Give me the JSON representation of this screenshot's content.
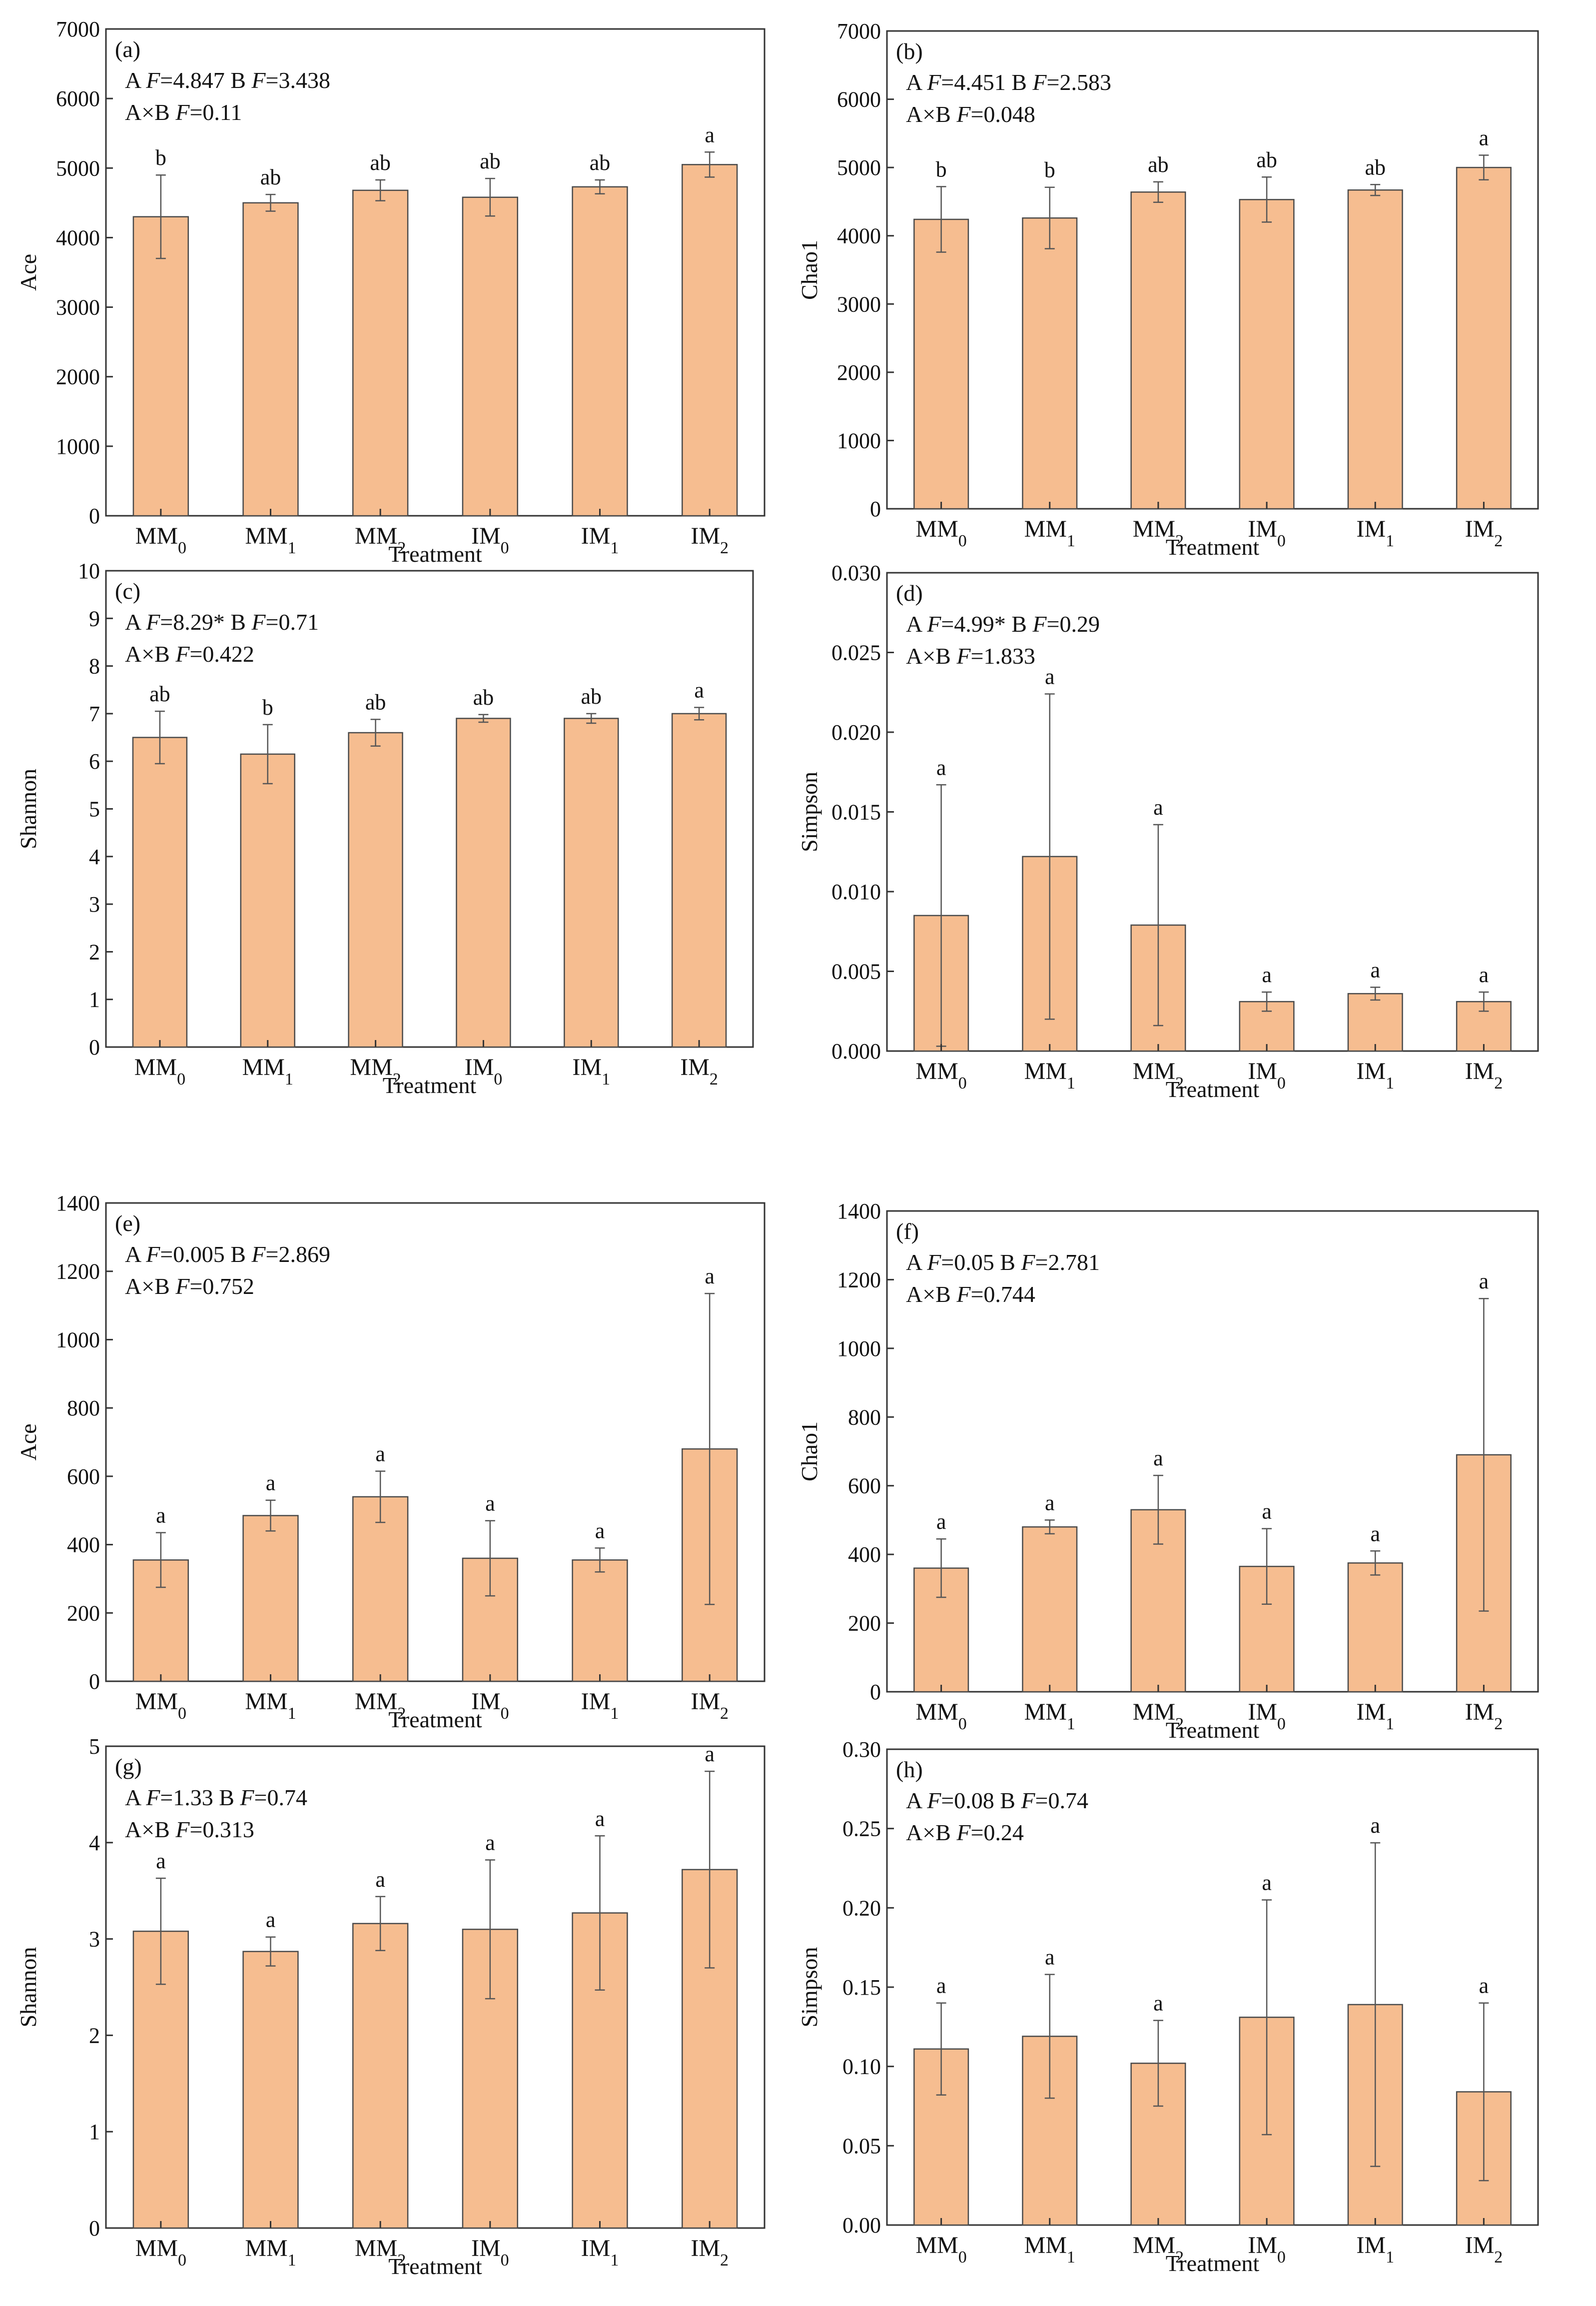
{
  "figure": {
    "bar_fill": "#F6BD90",
    "bar_stroke": "#4a4a4a",
    "error_color": "#555555",
    "axis_color": "#333333"
  },
  "chart_data": [
    {
      "id": "a",
      "type": "bar",
      "panel_label": "(a)",
      "stats": [
        "A F=4.847  B F=3.438",
        "A×B  F=0.11"
      ],
      "ylabel": "Ace",
      "xlabel": "Treatment",
      "ylim": [
        0,
        7000
      ],
      "yticks": [
        0,
        1000,
        2000,
        3000,
        4000,
        5000,
        6000,
        7000
      ],
      "ytick_labels": [
        "0",
        "1000",
        "2000",
        "3000",
        "4000",
        "5000",
        "6000",
        "7000"
      ],
      "categories": [
        "MM0",
        "MM1",
        "MM2",
        "IM0",
        "IM1",
        "IM2"
      ],
      "values": [
        4300,
        4500,
        4680,
        4580,
        4730,
        5050
      ],
      "errors": [
        600,
        120,
        150,
        270,
        100,
        180
      ],
      "letters": [
        "b",
        "ab",
        "ab",
        "ab",
        "ab",
        "a"
      ]
    },
    {
      "id": "b",
      "type": "bar",
      "panel_label": "(b)",
      "stats": [
        "A F=4.451  B F=2.583",
        "A×B  F=0.048"
      ],
      "ylabel": "Chao1",
      "xlabel": "Treatment",
      "ylim": [
        0,
        7000
      ],
      "yticks": [
        0,
        1000,
        2000,
        3000,
        4000,
        5000,
        6000,
        7000
      ],
      "ytick_labels": [
        "0",
        "1000",
        "2000",
        "3000",
        "4000",
        "5000",
        "6000",
        "7000"
      ],
      "categories": [
        "MM0",
        "MM1",
        "MM2",
        "IM0",
        "IM1",
        "IM2"
      ],
      "values": [
        4240,
        4260,
        4640,
        4530,
        4670,
        5000
      ],
      "errors": [
        480,
        450,
        150,
        330,
        80,
        180
      ],
      "letters": [
        "b",
        "b",
        "ab",
        "ab",
        "ab",
        "a"
      ]
    },
    {
      "id": "c",
      "type": "bar",
      "panel_label": "(c)",
      "stats": [
        "A  F=8.29*  B  F=0.71",
        "A×B  F=0.422"
      ],
      "ylabel": "Shannon",
      "xlabel": "Treatment",
      "ylim": [
        0,
        10
      ],
      "yticks": [
        0,
        1,
        2,
        3,
        4,
        5,
        6,
        7,
        8,
        9,
        10
      ],
      "ytick_labels": [
        "0",
        "1",
        "2",
        "3",
        "4",
        "5",
        "6",
        "7",
        "8",
        "9",
        "10"
      ],
      "categories": [
        "MM0",
        "MM1",
        "MM2",
        "IM0",
        "IM1",
        "IM2"
      ],
      "values": [
        6.5,
        6.15,
        6.6,
        6.9,
        6.9,
        7.0
      ],
      "errors": [
        0.55,
        0.62,
        0.28,
        0.08,
        0.1,
        0.13
      ],
      "letters": [
        "ab",
        "b",
        "ab",
        "ab",
        "ab",
        "a"
      ]
    },
    {
      "id": "d",
      "type": "bar",
      "panel_label": "(d)",
      "stats": [
        "A  F=4.99*  B  F=0.29",
        "A×B  F=1.833"
      ],
      "ylabel": "Simpson",
      "xlabel": "Treatment",
      "ylim": [
        0,
        0.03
      ],
      "yticks": [
        0,
        0.005,
        0.01,
        0.015,
        0.02,
        0.025,
        0.03
      ],
      "ytick_labels": [
        "0.000",
        "0.005",
        "0.010",
        "0.015",
        "0.020",
        "0.025",
        "0.030"
      ],
      "categories": [
        "MM0",
        "MM1",
        "MM2",
        "IM0",
        "IM1",
        "IM2"
      ],
      "values": [
        0.0085,
        0.0122,
        0.0079,
        0.0031,
        0.0036,
        0.0031
      ],
      "errors": [
        0.0082,
        0.0102,
        0.0063,
        0.0006,
        0.0004,
        0.0006
      ],
      "letters": [
        "a",
        "a",
        "a",
        "a",
        "a",
        "a"
      ]
    },
    {
      "id": "e",
      "type": "bar",
      "panel_label": "(e)",
      "stats": [
        "A  F=0.005    B  F=2.869",
        "A×B  F=0.752"
      ],
      "ylabel": "Ace",
      "xlabel": "Treatment",
      "ylim": [
        0,
        1400
      ],
      "yticks": [
        0,
        200,
        400,
        600,
        800,
        1000,
        1200,
        1400
      ],
      "ytick_labels": [
        "0",
        "200",
        "400",
        "600",
        "800",
        "1000",
        "1200",
        "1400"
      ],
      "categories": [
        "MM0",
        "MM1",
        "MM2",
        "IM0",
        "IM1",
        "IM2"
      ],
      "values": [
        355,
        485,
        540,
        360,
        355,
        680
      ],
      "errors": [
        80,
        45,
        75,
        110,
        35,
        455
      ],
      "letters": [
        "a",
        "a",
        "a",
        "a",
        "a",
        "a"
      ]
    },
    {
      "id": "f",
      "type": "bar",
      "panel_label": "(f)",
      "stats": [
        "A F=0.05   B F=2.781",
        "A×B  F=0.744"
      ],
      "ylabel": "Chao1",
      "xlabel": "Treatment",
      "ylim": [
        0,
        1400
      ],
      "yticks": [
        0,
        200,
        400,
        600,
        800,
        1000,
        1200,
        1400
      ],
      "ytick_labels": [
        "0",
        "200",
        "400",
        "600",
        "800",
        "1000",
        "1200",
        "1400"
      ],
      "categories": [
        "MM0",
        "MM1",
        "MM2",
        "IM0",
        "IM1",
        "IM2"
      ],
      "values": [
        360,
        480,
        530,
        365,
        375,
        690
      ],
      "errors": [
        85,
        20,
        100,
        110,
        35,
        455
      ],
      "letters": [
        "a",
        "a",
        "a",
        "a",
        "a",
        "a"
      ]
    },
    {
      "id": "g",
      "type": "bar",
      "panel_label": "(g)",
      "stats": [
        "A  F=1.33   B  F=0.74",
        "A×B  F=0.313"
      ],
      "ylabel": "Shannon",
      "xlabel": "Treatment",
      "ylim": [
        0,
        5
      ],
      "yticks": [
        0,
        1,
        2,
        3,
        4,
        5
      ],
      "ytick_labels": [
        "0",
        "1",
        "2",
        "3",
        "4",
        "5"
      ],
      "categories": [
        "MM0",
        "MM1",
        "MM2",
        "IM0",
        "IM1",
        "IM2"
      ],
      "values": [
        3.08,
        2.87,
        3.16,
        3.1,
        3.27,
        3.72
      ],
      "errors": [
        0.55,
        0.15,
        0.28,
        0.72,
        0.8,
        1.02
      ],
      "letters": [
        "a",
        "a",
        "a",
        "a",
        "a",
        "a"
      ]
    },
    {
      "id": "h",
      "type": "bar",
      "panel_label": "(h)",
      "stats": [
        "A F=0.08   B F=0.74",
        "A×B  F=0.24"
      ],
      "ylabel": "Simpson",
      "xlabel": "Treatment",
      "ylim": [
        0,
        0.3
      ],
      "yticks": [
        0,
        0.05,
        0.1,
        0.15,
        0.2,
        0.25,
        0.3
      ],
      "ytick_labels": [
        "0.00",
        "0.05",
        "0.10",
        "0.15",
        "0.20",
        "0.25",
        "0.30"
      ],
      "categories": [
        "MM0",
        "MM1",
        "MM2",
        "IM0",
        "IM1",
        "IM2"
      ],
      "values": [
        0.111,
        0.119,
        0.102,
        0.131,
        0.139,
        0.084
      ],
      "errors": [
        0.029,
        0.039,
        0.027,
        0.074,
        0.102,
        0.056
      ],
      "letters": [
        "a",
        "a",
        "a",
        "a",
        "a",
        "a"
      ]
    }
  ]
}
